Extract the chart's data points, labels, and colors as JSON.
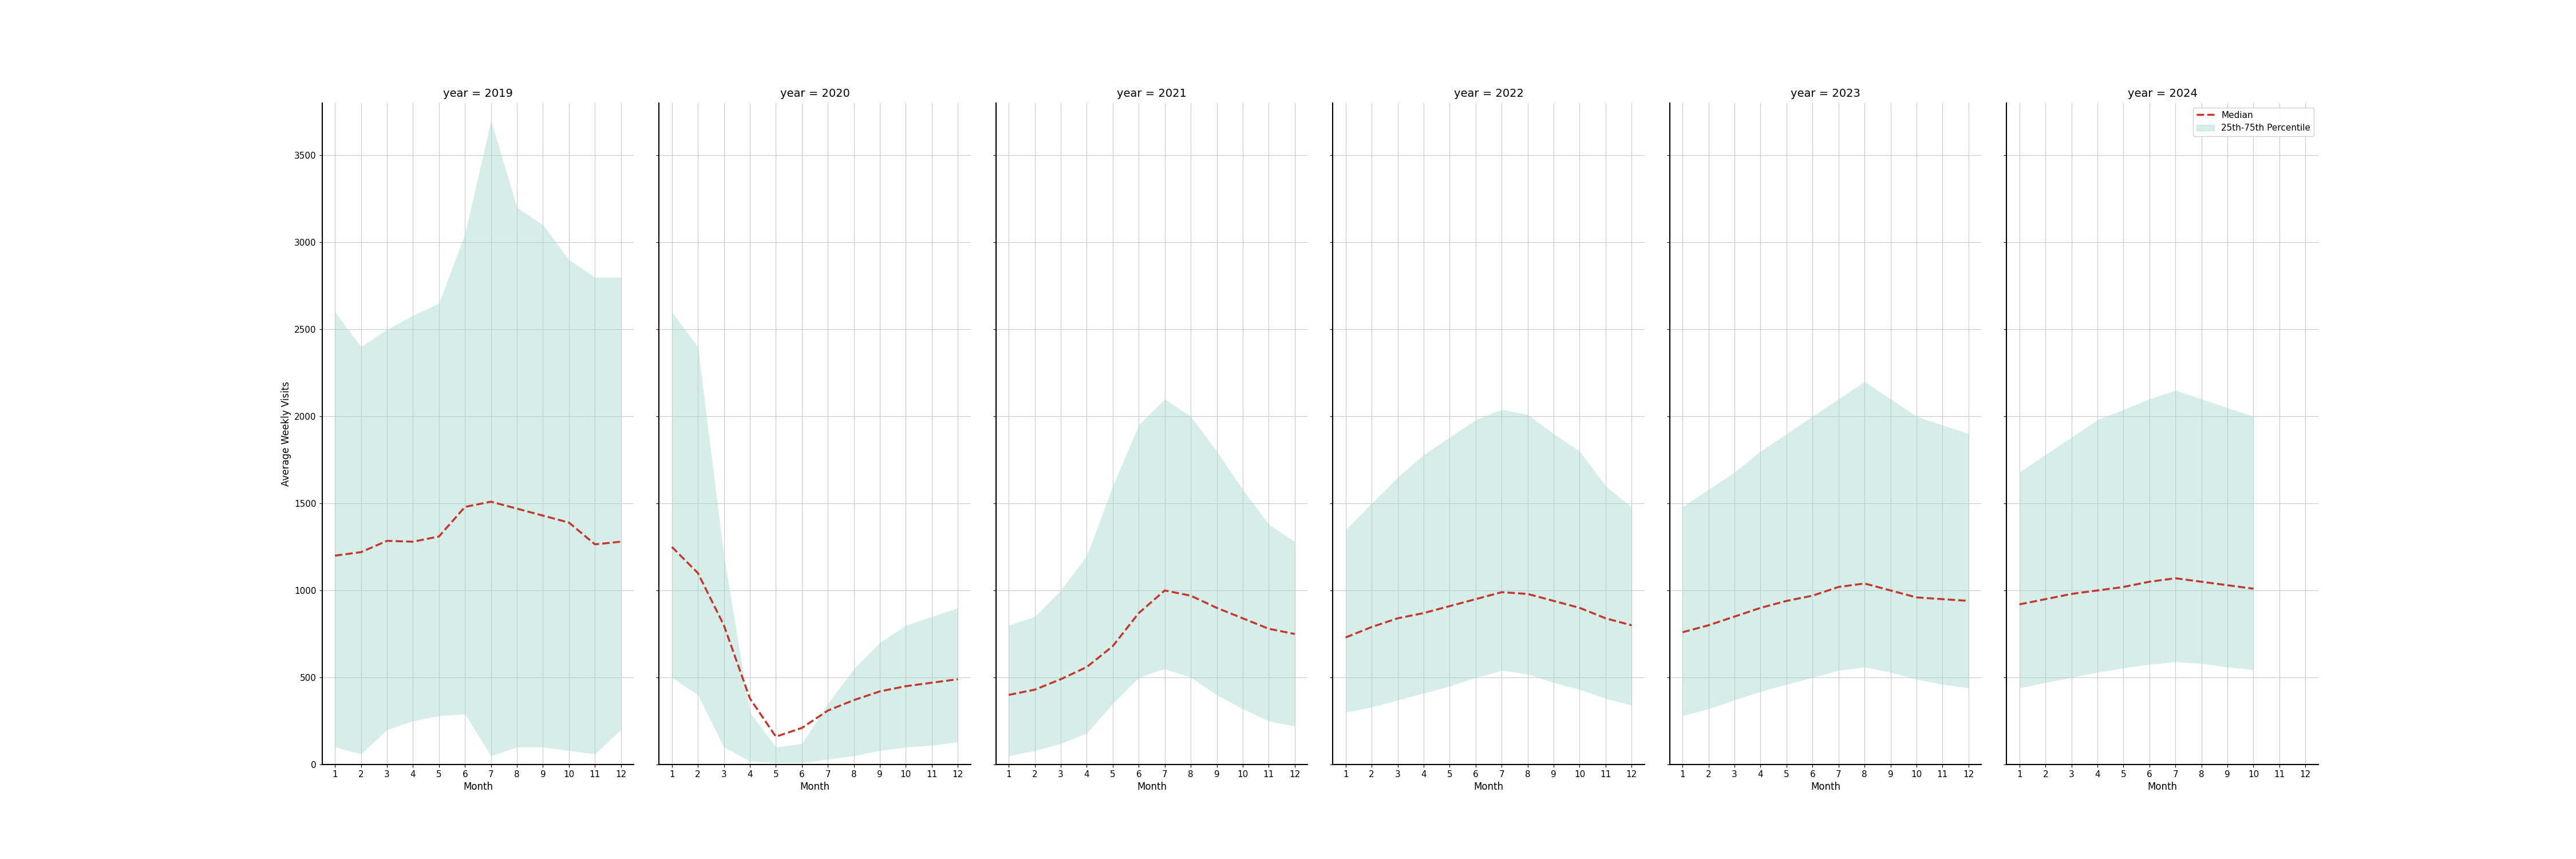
{
  "years": [
    2019,
    2020,
    2021,
    2022,
    2023,
    2024
  ],
  "months": [
    1,
    2,
    3,
    4,
    5,
    6,
    7,
    8,
    9,
    10,
    11,
    12
  ],
  "median": {
    "2019": [
      1200,
      1220,
      1285,
      1280,
      1310,
      1480,
      1510,
      1470,
      1430,
      1390,
      1265,
      1280
    ],
    "2020": [
      1250,
      1100,
      800,
      380,
      160,
      210,
      310,
      370,
      420,
      450,
      470,
      490
    ],
    "2021": [
      400,
      430,
      490,
      560,
      680,
      870,
      1000,
      970,
      900,
      840,
      780,
      750
    ],
    "2022": [
      730,
      790,
      840,
      870,
      910,
      950,
      990,
      980,
      940,
      900,
      840,
      800
    ],
    "2023": [
      760,
      800,
      850,
      900,
      940,
      970,
      1020,
      1040,
      1000,
      960,
      950,
      940
    ],
    "2024": [
      920,
      950,
      980,
      1000,
      1020,
      1050,
      1070,
      1050,
      1030,
      1010,
      null,
      null
    ]
  },
  "q25": {
    "2019": [
      100,
      60,
      200,
      250,
      280,
      290,
      50,
      100,
      100,
      80,
      60,
      200
    ],
    "2020": [
      500,
      400,
      100,
      20,
      10,
      10,
      30,
      50,
      80,
      100,
      110,
      130
    ],
    "2021": [
      50,
      80,
      120,
      180,
      350,
      500,
      550,
      500,
      400,
      320,
      250,
      220
    ],
    "2022": [
      300,
      330,
      370,
      410,
      450,
      500,
      540,
      520,
      470,
      430,
      380,
      340
    ],
    "2023": [
      280,
      320,
      370,
      420,
      460,
      500,
      540,
      560,
      530,
      490,
      460,
      440
    ],
    "2024": [
      440,
      470,
      500,
      530,
      555,
      575,
      590,
      580,
      560,
      545,
      null,
      null
    ]
  },
  "q75": {
    "2019": [
      2600,
      2400,
      2500,
      2580,
      2650,
      3050,
      3700,
      3200,
      3100,
      2900,
      2800,
      2800
    ],
    "2020": [
      2600,
      2400,
      1200,
      300,
      100,
      120,
      350,
      550,
      700,
      800,
      850,
      900
    ],
    "2021": [
      800,
      850,
      1000,
      1200,
      1600,
      1950,
      2100,
      2000,
      1800,
      1580,
      1380,
      1280
    ],
    "2022": [
      1350,
      1500,
      1650,
      1780,
      1880,
      1980,
      2040,
      2010,
      1900,
      1800,
      1600,
      1480
    ],
    "2023": [
      1480,
      1580,
      1680,
      1800,
      1900,
      2000,
      2100,
      2200,
      2100,
      2000,
      1950,
      1900
    ],
    "2024": [
      1680,
      1780,
      1880,
      1980,
      2040,
      2100,
      2150,
      2100,
      2050,
      2000,
      null,
      null
    ]
  },
  "fill_color": "#a8d8d0",
  "fill_alpha": 0.45,
  "line_color": "#c0392b",
  "line_style": "--",
  "line_width": 2.5,
  "ylabel": "Average Weekly Visits",
  "xlabel": "Month",
  "ylim": [
    0,
    3800
  ],
  "yticks": [
    0,
    500,
    1000,
    1500,
    2000,
    2500,
    3000,
    3500
  ],
  "background_color": "#ffffff",
  "grid_color": "#c8c8c8",
  "title_fontsize": 14,
  "label_fontsize": 12,
  "tick_fontsize": 11,
  "legend_fontsize": 11
}
